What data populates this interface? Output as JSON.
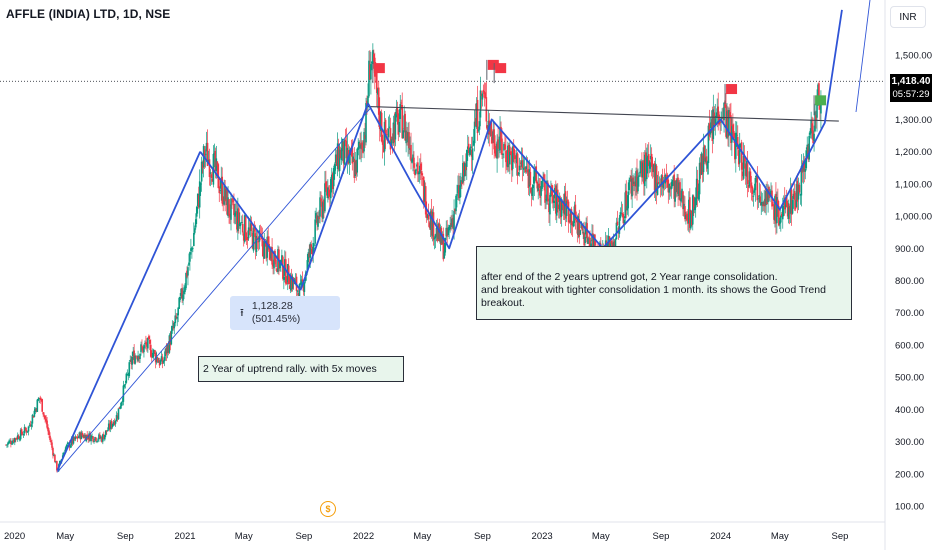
{
  "header": {
    "title": "AFFLE (INDIA) LTD, 1D, NSE",
    "currency": "INR"
  },
  "last_price": {
    "price": "1,418.40",
    "countdown": "05:57:29"
  },
  "annotations": {
    "note1": "2 Year of uptrend rally. with 5x moves",
    "note2_line1": "after end of the 2 years uptrend got, 2 Year range consolidation.",
    "note2_line2": "and breakout with tighter consolidation 1 month. its shows the Good Trend breakout.",
    "measure": "1,128.28 (501.45%)",
    "dividend_icon": "$"
  },
  "colors": {
    "up": "#089981",
    "down": "#f23645",
    "trend": "#2f54d6",
    "flag_red": "#f23645",
    "flag_green": "#4caf50",
    "note_bg": "#e8f5ec"
  },
  "chart_data": {
    "type": "candlestick",
    "title": "AFFLE (INDIA) LTD, 1D, NSE",
    "y_axis": {
      "ticks": [
        100,
        200,
        300,
        400,
        500,
        600,
        700,
        800,
        900,
        1000,
        1100,
        1200,
        1300,
        1400,
        1500
      ],
      "tick_labels": [
        "100.00",
        "200.00",
        "300.00",
        "400.00",
        "500.00",
        "600.00",
        "700.00",
        "800.00",
        "900.00",
        "1,000.00",
        "1,100.00",
        "1,200.00",
        "1,300.00",
        "1,400.00",
        "1,500.00"
      ],
      "range": [
        80,
        1640
      ]
    },
    "x_axis": {
      "tick_labels": [
        "2020",
        "May",
        "Sep",
        "2021",
        "May",
        "Sep",
        "2022",
        "May",
        "Sep",
        "2023",
        "May",
        "Sep",
        "2024",
        "May",
        "Sep"
      ],
      "tick_dates": [
        "2020-01-01",
        "2020-05-01",
        "2020-09-01",
        "2021-01-01",
        "2021-05-01",
        "2021-09-01",
        "2022-01-01",
        "2022-05-01",
        "2022-09-01",
        "2023-01-01",
        "2023-05-01",
        "2023-09-01",
        "2024-01-01",
        "2024-05-01",
        "2024-09-01"
      ]
    },
    "price_path": [
      [
        "2020-01-01",
        290
      ],
      [
        "2020-02-15",
        340
      ],
      [
        "2020-03-10",
        440
      ],
      [
        "2020-04-01",
        300
      ],
      [
        "2020-04-15",
        210
      ],
      [
        "2020-05-01",
        280
      ],
      [
        "2020-06-01",
        320
      ],
      [
        "2020-07-15",
        310
      ],
      [
        "2020-08-15",
        380
      ],
      [
        "2020-09-15",
        560
      ],
      [
        "2020-10-15",
        600
      ],
      [
        "2020-11-15",
        540
      ],
      [
        "2020-12-15",
        680
      ],
      [
        "2021-01-15",
        900
      ],
      [
        "2021-02-10",
        1200
      ],
      [
        "2021-03-01",
        1150
      ],
      [
        "2021-04-01",
        1020
      ],
      [
        "2021-05-15",
        940
      ],
      [
        "2021-07-01",
        880
      ],
      [
        "2021-08-25",
        760
      ],
      [
        "2021-10-01",
        1000
      ],
      [
        "2021-11-15",
        1200
      ],
      [
        "2021-12-15",
        1150
      ],
      [
        "2022-01-05",
        1280
      ],
      [
        "2022-01-15",
        1500
      ],
      [
        "2022-02-10",
        1240
      ],
      [
        "2022-03-20",
        1300
      ],
      [
        "2022-04-20",
        1160
      ],
      [
        "2022-05-20",
        980
      ],
      [
        "2022-06-15",
        900
      ],
      [
        "2022-07-20",
        1100
      ],
      [
        "2022-08-20",
        1300
      ],
      [
        "2022-09-01",
        1380
      ],
      [
        "2022-09-20",
        1250
      ],
      [
        "2022-10-20",
        1200
      ],
      [
        "2022-11-20",
        1150
      ],
      [
        "2022-12-20",
        1100
      ],
      [
        "2023-01-20",
        1050
      ],
      [
        "2023-02-20",
        1030
      ],
      [
        "2023-03-20",
        960
      ],
      [
        "2023-04-20",
        920
      ],
      [
        "2023-05-05",
        880
      ],
      [
        "2023-06-01",
        940
      ],
      [
        "2023-07-01",
        1100
      ],
      [
        "2023-08-01",
        1150
      ],
      [
        "2023-09-01",
        1110
      ],
      [
        "2023-10-01",
        1080
      ],
      [
        "2023-11-01",
        1000
      ],
      [
        "2023-12-01",
        1200
      ],
      [
        "2024-01-01",
        1350
      ],
      [
        "2024-02-01",
        1220
      ],
      [
        "2024-03-01",
        1120
      ],
      [
        "2024-04-01",
        1070
      ],
      [
        "2024-05-01",
        1000
      ],
      [
        "2024-06-05",
        1070
      ],
      [
        "2024-06-25",
        1200
      ],
      [
        "2024-07-15",
        1320
      ],
      [
        "2024-07-25",
        1418.4
      ]
    ],
    "trend_lines": [
      {
        "name": "uptrend-leg-1",
        "points": [
          [
            "2020-04-15",
            210
          ],
          [
            "2021-02-01",
            1200
          ]
        ]
      },
      {
        "name": "uptrend-leg-2",
        "points": [
          [
            "2021-02-01",
            1200
          ],
          [
            "2021-08-25",
            770
          ]
        ]
      },
      {
        "name": "uptrend-leg-3",
        "points": [
          [
            "2021-08-25",
            770
          ],
          [
            "2022-01-10",
            1350
          ]
        ]
      },
      {
        "name": "range-zigzag",
        "points": [
          [
            "2022-01-10",
            1350
          ],
          [
            "2022-04-10",
            1100
          ],
          [
            "2022-06-25",
            900
          ],
          [
            "2022-09-20",
            1300
          ],
          [
            "2023-05-05",
            900
          ],
          [
            "2024-01-01",
            1300
          ],
          [
            "2024-05-01",
            1020
          ],
          [
            "2024-08-01",
            1290
          ],
          [
            "2024-09-05",
            1640
          ]
        ]
      }
    ],
    "channel_line": [
      [
        "2020-04-15",
        205
      ],
      [
        "2022-01-15",
        1335
      ]
    ],
    "resistance_line": [
      [
        "2022-01-10",
        1340
      ],
      [
        "2024-08-01",
        1295
      ]
    ],
    "last_price_line": 1418.4,
    "flags": [
      {
        "date": "2022-01-20",
        "price": 1450,
        "color": "red"
      },
      {
        "date": "2022-09-10",
        "price": 1460,
        "color": "red"
      },
      {
        "date": "2022-09-25",
        "price": 1450,
        "color": "red"
      },
      {
        "date": "2024-01-10",
        "price": 1385,
        "color": "red"
      },
      {
        "date": "2024-07-10",
        "price": 1350,
        "color": "green"
      }
    ]
  }
}
